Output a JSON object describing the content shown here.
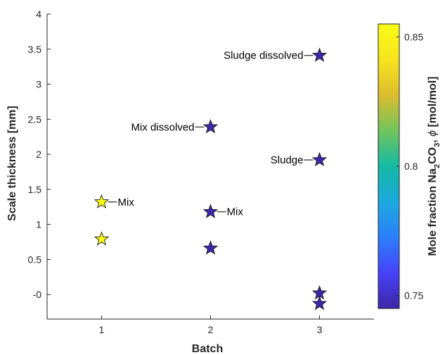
{
  "chart_data": {
    "type": "scatter",
    "xlabel": "Batch",
    "ylabel": "Scale thickness [mm]",
    "xlim": [
      0.5,
      3.5
    ],
    "ylim": [
      -0.35,
      4
    ],
    "x_ticks": [
      "1",
      "2",
      "3"
    ],
    "y_ticks": [
      "-0",
      "0.5",
      "1",
      "1.5",
      "2",
      "2.5",
      "3",
      "3.5",
      "4"
    ],
    "grid": false,
    "marker": "star",
    "points": [
      {
        "x": 1,
        "y": 1.32,
        "phi": 0.855,
        "label": "Mix"
      },
      {
        "x": 1,
        "y": 0.79,
        "phi": 0.855,
        "label": ""
      },
      {
        "x": 2,
        "y": 2.39,
        "phi": 0.745,
        "label": "Mix dissolved"
      },
      {
        "x": 2,
        "y": 1.18,
        "phi": 0.745,
        "label": "Mix"
      },
      {
        "x": 2,
        "y": 0.66,
        "phi": 0.745,
        "label": ""
      },
      {
        "x": 3,
        "y": 3.41,
        "phi": 0.745,
        "label": "Sludge dissolved"
      },
      {
        "x": 3,
        "y": 1.92,
        "phi": 0.745,
        "label": "Sludge"
      },
      {
        "x": 3,
        "y": 0.02,
        "phi": 0.745,
        "label": ""
      },
      {
        "x": 3,
        "y": -0.13,
        "phi": 0.745,
        "label": ""
      }
    ],
    "colorbar": {
      "label_main": "Mole fraction Na",
      "label_sub1": "2",
      "label_mid": "CO",
      "label_sub2": "3",
      "label_tail": ", ",
      "label_symbol": "ϕ",
      "label_unit": " [mol/mol]",
      "colormap": "parula",
      "range": [
        0.745,
        0.855
      ],
      "ticks": [
        "0.75",
        "0.8",
        "0.85"
      ],
      "tick_values": [
        0.75,
        0.8,
        0.85
      ],
      "colors": [
        "#3e26a8",
        "#4743f8",
        "#2c7ffa",
        "#1ca9df",
        "#15b9a3",
        "#72c45e",
        "#dcbc2c",
        "#f6e41f",
        "#f9fb15"
      ]
    }
  }
}
